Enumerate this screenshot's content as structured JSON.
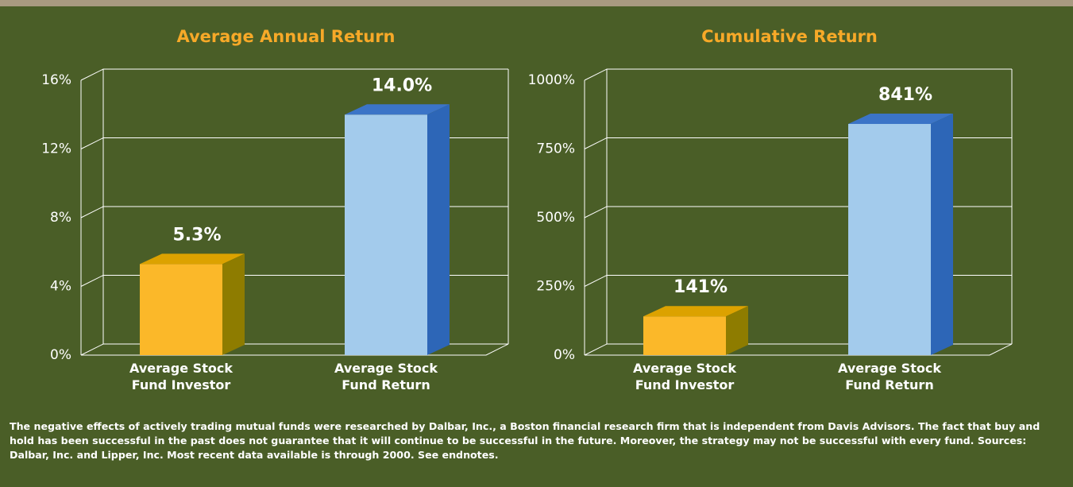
{
  "chart_data": [
    {
      "type": "bar3d",
      "title": "Average Annual Return",
      "categories": [
        "Average Stock Fund Investor",
        "Average Stock Fund Return"
      ],
      "values": [
        5.3,
        14.0
      ],
      "value_labels": [
        "5.3%",
        "14.0%"
      ],
      "colors": [
        "#fbb829",
        "#a3cbec"
      ],
      "top_colors": [
        "#dca200",
        "#3b74c7"
      ],
      "side_colors": [
        "#8e7c00",
        "#2d66b7"
      ],
      "title_color": "#f7a928",
      "ylim": [
        0,
        16
      ],
      "yticks": [
        {
          "value": 0,
          "label": "0%"
        },
        {
          "value": 4,
          "label": "4%"
        },
        {
          "value": 8,
          "label": "8%"
        },
        {
          "value": 12,
          "label": "12%"
        },
        {
          "value": 16,
          "label": "16%"
        }
      ],
      "grid": true
    },
    {
      "type": "bar3d",
      "title": "Cumulative Return",
      "categories": [
        "Average Stock Fund Investor",
        "Average Stock Fund Return"
      ],
      "values": [
        141,
        841
      ],
      "value_labels": [
        "141%",
        "841%"
      ],
      "colors": [
        "#fbb829",
        "#a3cbec"
      ],
      "top_colors": [
        "#dca200",
        "#3b74c7"
      ],
      "side_colors": [
        "#8e7c00",
        "#2d66b7"
      ],
      "title_color": "#f7a928",
      "ylim": [
        0,
        1000
      ],
      "yticks": [
        {
          "value": 0,
          "label": "0%"
        },
        {
          "value": 250,
          "label": "250%"
        },
        {
          "value": 500,
          "label": "500%"
        },
        {
          "value": 750,
          "label": "750%"
        },
        {
          "value": 1000,
          "label": "1000%"
        }
      ],
      "grid": true
    }
  ],
  "footnote": "The negative effects of actively trading mutual funds were researched by Dalbar, Inc., a Boston financial research firm that is independent from Davis Advisors. The fact that buy and hold has been successful in the past does not guarantee that it will continue to be successful in the future. Moreover, the strategy may not be successful with every fund. Sources: Dalbar, Inc. and Lipper, Inc. Most recent data available is through 2000. See endnotes."
}
